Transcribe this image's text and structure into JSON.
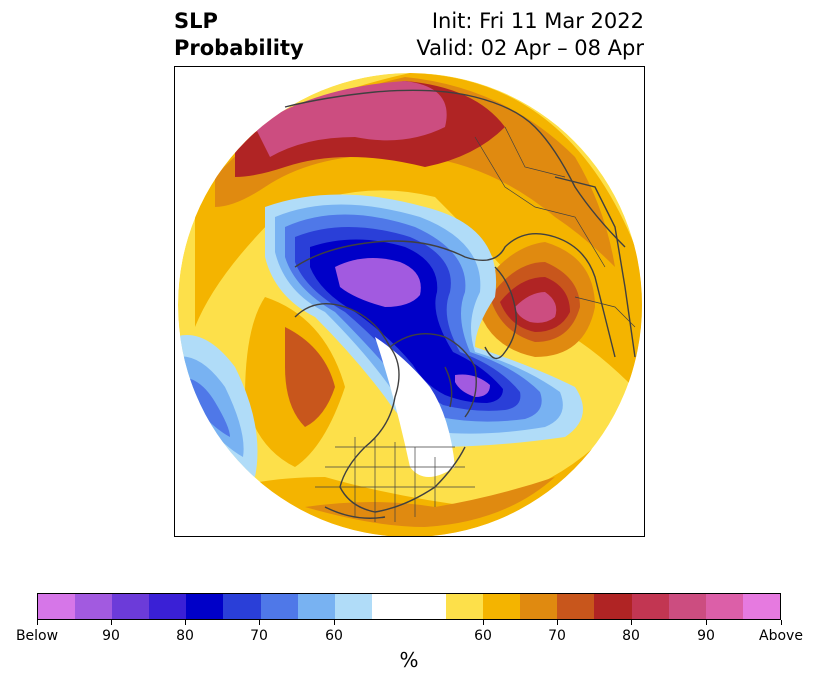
{
  "title": {
    "left_line1": "SLP",
    "left_line2": "Probability",
    "right_line1": "Init: Fri 11 Mar 2022",
    "right_line2": "Valid: 02 Apr – 08 Apr"
  },
  "colorbar": {
    "colors": [
      "#d676e8",
      "#a25ae0",
      "#6c3bd9",
      "#3a20d6",
      "#0000c8",
      "#2a3fd8",
      "#4f78e8",
      "#78b2f2",
      "#b0dcf8",
      "#ffffff",
      "#ffffff",
      "#fde04a",
      "#f4b400",
      "#e08a10",
      "#c8561c",
      "#b02424",
      "#c23652",
      "#cc4d80",
      "#dc5fa8",
      "#e67ae0"
    ],
    "tick_labels": [
      "Below",
      "90",
      "80",
      "70",
      "60",
      "60",
      "70",
      "80",
      "90",
      "Above"
    ],
    "unit_label": "%"
  },
  "map": {
    "projection": "north-polar-stereographic",
    "variable": "Sea level pressure probability",
    "palette": {
      "below_90": "#a25ae0",
      "below_80": "#0000c8",
      "below_70": "#2a3fd8",
      "below_60": "#4f78e8",
      "below_50": "#78b2f2",
      "below_40": "#b0dcf8",
      "above_40": "#fde04a",
      "above_50": "#f4b400",
      "above_60": "#e08a10",
      "above_70": "#c8561c",
      "above_80": "#b02424",
      "above_90": "#cc4d80",
      "coastline": "#404040"
    }
  }
}
